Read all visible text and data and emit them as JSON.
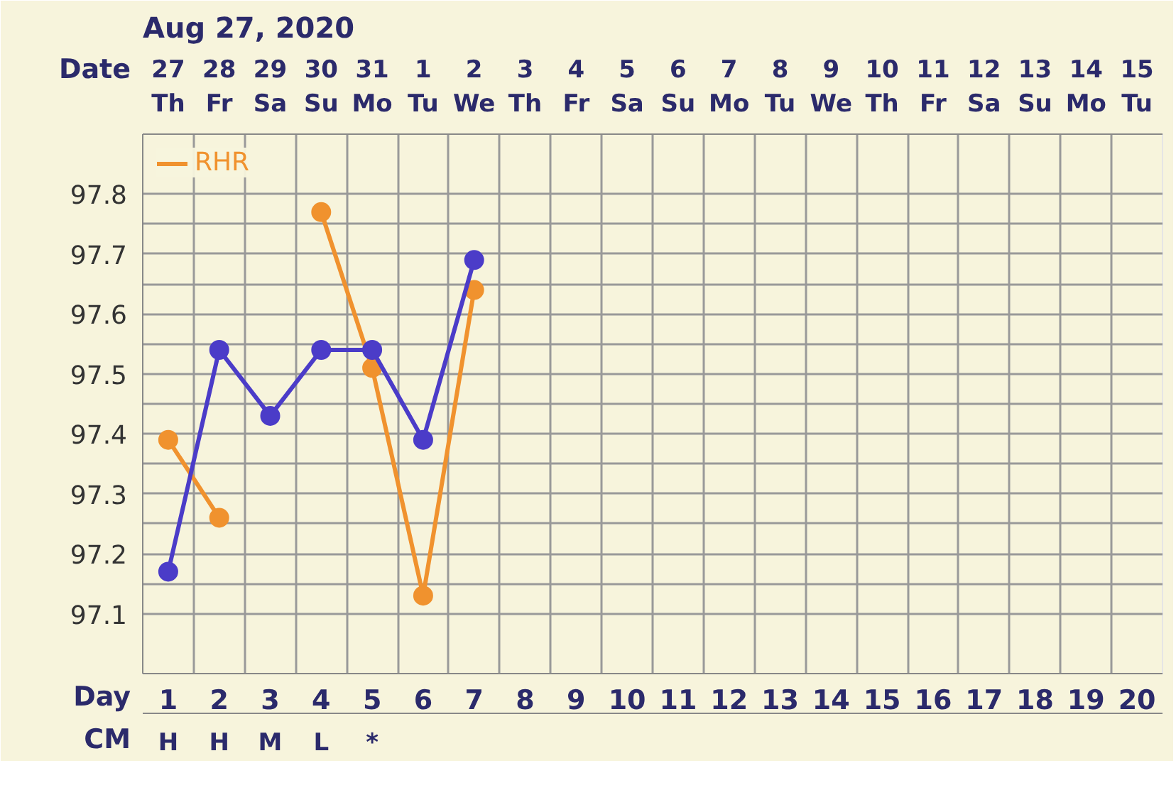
{
  "chart_data": {
    "type": "line",
    "title": "Aug 27, 2020",
    "xlabel": "Day",
    "x2label": "Date",
    "x": [
      1,
      2,
      3,
      4,
      5,
      6,
      7
    ],
    "xlim": [
      0.5,
      20.5
    ],
    "xticks": [
      1,
      2,
      3,
      4,
      5,
      6,
      7,
      8,
      9,
      10,
      11,
      12,
      13,
      14,
      15,
      16,
      17,
      18,
      19,
      20
    ],
    "x2lim": [
      "2020-08-26T12:00",
      "2020-09-15T12:00"
    ],
    "x2ticks": [
      {
        "value": "2020-08-27",
        "label": "27\nTh"
      },
      {
        "value": "2020-08-28",
        "label": "28\nFr"
      },
      {
        "value": "2020-08-29",
        "label": "29\nSa"
      },
      {
        "value": "2020-08-30",
        "label": "30\nSu"
      },
      {
        "value": "2020-08-31",
        "label": "31\nMo"
      },
      {
        "value": "2020-09-01",
        "label": "1\nTu"
      },
      {
        "value": "2020-09-02",
        "label": "2\nWe"
      },
      {
        "value": "2020-09-03",
        "label": "3\nTh"
      },
      {
        "value": "2020-09-04",
        "label": "4\nFr"
      },
      {
        "value": "2020-09-05",
        "label": "5\nSa"
      },
      {
        "value": "2020-09-06",
        "label": "6\nSu"
      },
      {
        "value": "2020-09-07",
        "label": "7\nMo"
      },
      {
        "value": "2020-09-08",
        "label": "8\nTu"
      },
      {
        "value": "2020-09-09",
        "label": "9\nWe"
      },
      {
        "value": "2020-09-10",
        "label": "10\nTh"
      },
      {
        "value": "2020-09-11",
        "label": "11\nFr"
      },
      {
        "value": "2020-09-12",
        "label": "12\nSa"
      },
      {
        "value": "2020-09-13",
        "label": "13\nSu"
      },
      {
        "value": "2020-09-14",
        "label": "14\nMo"
      },
      {
        "value": "2020-09-15",
        "label": "15\nTu"
      }
    ],
    "ylim": [
      97.0,
      97.9
    ],
    "yticks": [
      97.1,
      97.2,
      97.3,
      97.4,
      97.5,
      97.6,
      97.7,
      97.8
    ],
    "series": [
      {
        "color": "#f0922e",
        "name": "RHR",
        "values": [
          97.39,
          97.26,
          null,
          97.77,
          97.51,
          97.13,
          97.64
        ]
      },
      {
        "color": "#4b3cc8",
        "values": [
          97.17,
          97.54,
          97.43,
          97.54,
          97.54,
          97.39,
          97.69
        ]
      }
    ],
    "annotations": [
      "CM",
      "H",
      "H",
      "M",
      "L",
      "*"
    ],
    "legend": "top left",
    "grid": true,
    "marker": "circle",
    "line_style": "solid"
  }
}
